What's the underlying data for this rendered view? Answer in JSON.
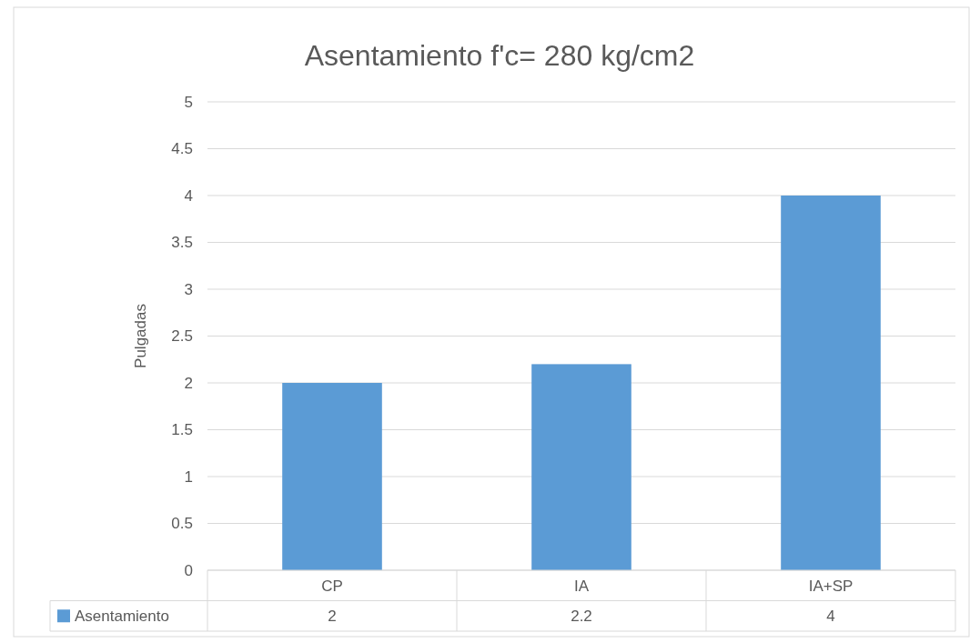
{
  "chart_data": {
    "type": "bar",
    "title": "Asentamiento f'c= 280 kg/cm2",
    "ylabel": "Pulgadas",
    "categories": [
      "CP",
      "IA",
      "IA+SP"
    ],
    "series": [
      {
        "name": "Asentamiento",
        "color": "#5b9bd5",
        "values": [
          2,
          2.2,
          4
        ]
      }
    ],
    "ylim": [
      0,
      5
    ],
    "yticks": [
      0,
      0.5,
      1,
      1.5,
      2,
      2.5,
      3,
      3.5,
      4,
      4.5,
      5
    ],
    "grid": "y",
    "legend": "bottom",
    "data_labels": true
  }
}
